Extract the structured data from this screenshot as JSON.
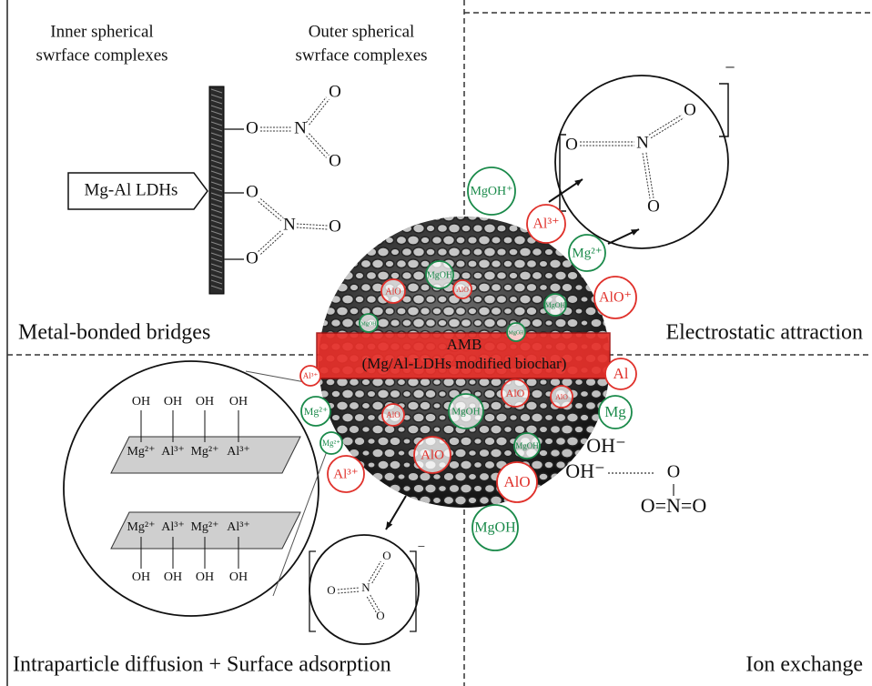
{
  "labels": {
    "inner_header": [
      "Inner spherical",
      "swrface complexes"
    ],
    "outer_header": [
      "Outer spherical",
      "swrface complexes"
    ],
    "ldh": "Mg-Al LDHs",
    "metal_bonded": "Metal-bonded bridges",
    "electrostatic": "Electrostatic attraction",
    "intraparticle": "Intraparticle  diffusion + Surface adsorption",
    "ion_exchange": "Ion exchange",
    "amb": "AMB",
    "amb_sub": "(Mg/Al-LDHs modified biochar)"
  },
  "bridge_atoms": [
    "O",
    "N",
    "O",
    "O",
    "O",
    "N",
    "O",
    "O"
  ],
  "nitrate_top": {
    "atoms": [
      "O",
      "N",
      "O",
      "O"
    ],
    "charge": "−"
  },
  "nitrate_bottom": {
    "atoms": [
      "O",
      "N",
      "O",
      "O"
    ],
    "charge": "−"
  },
  "ion_exchange": {
    "hydroxides": [
      "OH⁻",
      "OH⁻"
    ],
    "nitrate": [
      "O",
      "O=N=O"
    ]
  },
  "layer_top": {
    "hydroxyls": [
      "OH",
      "OH",
      "OH",
      "OH"
    ],
    "metals": [
      "Mg²⁺",
      "Al³⁺",
      "Mg²⁺",
      "Al³⁺"
    ]
  },
  "layer_bottom": {
    "metals": [
      "Mg²⁺",
      "Al³⁺",
      "Mg²⁺",
      "Al³⁺"
    ],
    "hydroxyls": [
      "OH",
      "OH",
      "OH",
      "OH"
    ]
  },
  "ions": [
    {
      "text": "MgOH⁺",
      "color": "#1a8a4a"
    },
    {
      "text": "Al³⁺",
      "color": "#e0302a"
    },
    {
      "text": "Mg²⁺",
      "color": "#1a8a4a"
    },
    {
      "text": "AlO⁺",
      "color": "#e0302a"
    },
    {
      "text": "Al³⁺",
      "color": "#e0302a"
    },
    {
      "text": "Mg²⁺",
      "color": "#1a8a4a"
    },
    {
      "text": "Mg²⁺",
      "color": "#1a8a4a"
    },
    {
      "text": "Al³⁺",
      "color": "#e0302a"
    },
    {
      "text": "Al",
      "color": "#e0302a"
    },
    {
      "text": "Mg",
      "color": "#1a8a4a"
    },
    {
      "text": "AlO",
      "color": "#e0302a"
    },
    {
      "text": "MgOH",
      "color": "#1a8a4a"
    },
    {
      "text": "MgOH",
      "color": "#1a8a4a"
    },
    {
      "text": "AlO",
      "color": "#e0302a"
    },
    {
      "text": "AlO",
      "color": "#e0302a"
    },
    {
      "text": "MgOH",
      "color": "#1a8a4a"
    },
    {
      "text": "MgOH",
      "color": "#1a8a4a"
    },
    {
      "text": "MgOH",
      "color": "#1a8a4a"
    },
    {
      "text": "AlO",
      "color": "#e0302a"
    },
    {
      "text": "AlO",
      "color": "#e0302a"
    },
    {
      "text": "MgOH",
      "color": "#1a8a4a"
    },
    {
      "text": "AlO",
      "color": "#e0302a"
    },
    {
      "text": "MgOH",
      "color": "#1a8a4a"
    },
    {
      "text": "AlO",
      "color": "#e0302a"
    }
  ]
}
